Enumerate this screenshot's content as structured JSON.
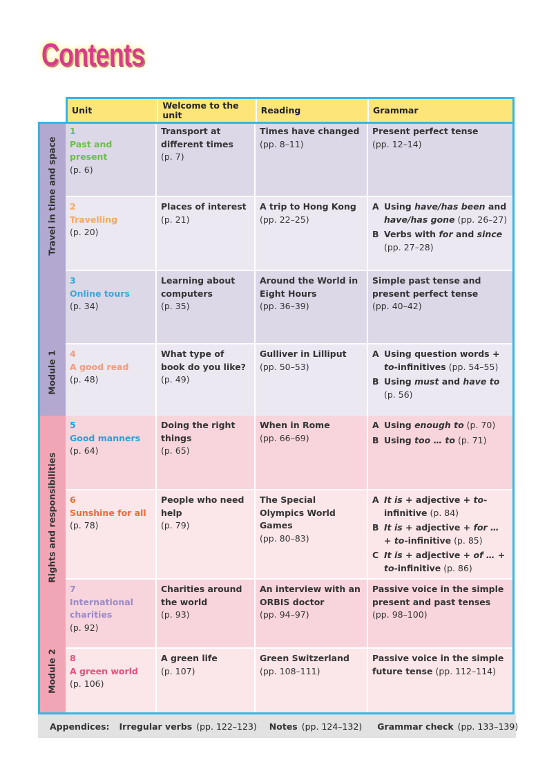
{
  "title": "Contents",
  "header": {
    "unit": "Unit",
    "welcome": "Welcome to the unit",
    "reading": "Reading",
    "grammar": "Grammar"
  },
  "modules": [
    {
      "theme": "Travel in time and space",
      "name": "Module 1",
      "color": "#b3a8d0",
      "row_colors": [
        "#dcd8e7",
        "#ebe8f2"
      ]
    },
    {
      "theme": "Rights and responsibilities",
      "name": "Module 2",
      "color": "#f1a6b6",
      "row_colors": [
        "#f8d5dc",
        "#fbe6e9"
      ]
    }
  ],
  "units": [
    {
      "num": "1",
      "name": "Past and present",
      "page": "(p. 6)",
      "color": "#6cbd4b",
      "welcome": "Transport at different times",
      "welcome_page": "(p. 7)",
      "reading": "Times have changed",
      "reading_page": "(pp. 8–11)",
      "grammar": [
        {
          "letter": "",
          "parts": [
            {
              "t": "Present perfect tense"
            }
          ],
          "page": "(pp. 12–14)",
          "page_newline": true
        }
      ]
    },
    {
      "num": "2",
      "name": "Travelling",
      "page": "(p. 20)",
      "color": "#f5a85e",
      "welcome": "Places of interest",
      "welcome_page": "(p. 21)",
      "reading": "A trip to Hong Kong",
      "reading_page": "(pp. 22–25)",
      "grammar": [
        {
          "letter": "A",
          "parts": [
            {
              "t": "Using "
            },
            {
              "t": "have/has been",
              "i": true
            },
            {
              "t": " and "
            },
            {
              "t": "have/has gone",
              "i": true
            }
          ],
          "page": " (pp. 26–27)"
        },
        {
          "letter": "B",
          "parts": [
            {
              "t": "Verbs with "
            },
            {
              "t": "for",
              "i": true
            },
            {
              "t": " and "
            },
            {
              "t": "since",
              "i": true
            }
          ],
          "page": "(pp. 27–28)",
          "page_newline": true
        }
      ]
    },
    {
      "num": "3",
      "name": "Online tours",
      "page": "(p. 34)",
      "color": "#38a8dc",
      "welcome": "Learning about computers",
      "welcome_page": "(p. 35)",
      "reading": "Around the World in Eight Hours",
      "reading_page": "(pp. 36–39)",
      "grammar": [
        {
          "letter": "",
          "parts": [
            {
              "t": "Simple past tense and present perfect tense"
            }
          ],
          "page": "(pp. 40–42)",
          "page_newline": true
        }
      ]
    },
    {
      "num": "4",
      "name": "A good read",
      "page": "(p. 48)",
      "color": "#f39b7c",
      "welcome": "What type of book do you like?",
      "welcome_page": "(p. 49)",
      "reading": "Gulliver in Lilliput",
      "reading_page": "(pp. 50–53)",
      "grammar": [
        {
          "letter": "A",
          "parts": [
            {
              "t": "Using question words + "
            },
            {
              "t": "to",
              "i": true
            },
            {
              "t": "-infinitives"
            }
          ],
          "page": " (pp. 54–55)"
        },
        {
          "letter": "B",
          "parts": [
            {
              "t": "Using "
            },
            {
              "t": "must",
              "i": true
            },
            {
              "t": " and "
            },
            {
              "t": "have to",
              "i": true
            }
          ],
          "page": "(p. 56)",
          "page_newline": true
        }
      ]
    },
    {
      "num": "5",
      "name": "Good manners",
      "page": "(p. 64)",
      "color": "#2a9fd6",
      "welcome": "Doing the right things",
      "welcome_page": "(p. 65)",
      "reading": "When in Rome",
      "reading_page": "(pp. 66–69)",
      "grammar": [
        {
          "letter": "A",
          "parts": [
            {
              "t": "Using "
            },
            {
              "t": "enough to",
              "i": true
            }
          ],
          "page": " (p. 70)"
        },
        {
          "letter": "B",
          "parts": [
            {
              "t": "Using "
            },
            {
              "t": "too … to",
              "i": true
            }
          ],
          "page": " (p. 71)"
        }
      ]
    },
    {
      "num": "6",
      "name": "Sunshine for all",
      "page": "(p. 78)",
      "color": "#ee6a3c",
      "welcome": "People who need help",
      "welcome_page": "(p. 79)",
      "reading": "The Special Olympics World Games",
      "reading_page": "(pp. 80–83)",
      "grammar": [
        {
          "letter": "A",
          "parts": [
            {
              "t": "It is",
              "i": true
            },
            {
              "t": " + adjective + "
            },
            {
              "t": "to",
              "i": true
            },
            {
              "t": "-infinitive"
            }
          ],
          "page": " (p. 84)"
        },
        {
          "letter": "B",
          "parts": [
            {
              "t": "It is",
              "i": true
            },
            {
              "t": " + adjective + "
            },
            {
              "t": "for …",
              "i": true
            },
            {
              "t": " + "
            },
            {
              "t": "to",
              "i": true
            },
            {
              "t": "-infinitive"
            }
          ],
          "page": " (p. 85)"
        },
        {
          "letter": "C",
          "parts": [
            {
              "t": "It is",
              "i": true
            },
            {
              "t": " + adjective + "
            },
            {
              "t": "of …",
              "i": true
            },
            {
              "t": " + "
            },
            {
              "t": "to",
              "i": true
            },
            {
              "t": "-infinitive"
            }
          ],
          "page": " (p. 86)"
        }
      ]
    },
    {
      "num": "7",
      "name": "International charities",
      "page": "(p. 92)",
      "color": "#9a8ac6",
      "welcome": "Charities around the world",
      "welcome_page": "(p. 93)",
      "reading": "An interview with an ORBIS doctor",
      "reading_page": "(pp. 94–97)",
      "grammar": [
        {
          "letter": "",
          "parts": [
            {
              "t": "Passive voice in the simple present and past tenses"
            }
          ],
          "page": "(pp. 98–100)",
          "page_newline": true
        }
      ]
    },
    {
      "num": "8",
      "name": "A green world",
      "page": "(p. 106)",
      "color": "#e6507c",
      "welcome": "A green life",
      "welcome_page": "(p. 107)",
      "reading": "Green Switzerland",
      "reading_page": "(pp. 108–111)",
      "grammar": [
        {
          "letter": "",
          "parts": [
            {
              "t": "Passive voice in the simple future tense"
            }
          ],
          "page": " (pp. 112–114)"
        }
      ]
    }
  ],
  "footer": {
    "label": "Appendices:",
    "items": [
      {
        "name": "Irregular verbs",
        "pages": "(pp. 122–123)"
      },
      {
        "name": "Notes",
        "pages": "(pp. 124–132)"
      },
      {
        "name": "Grammar check",
        "pages": "(pp. 133–139)"
      }
    ]
  }
}
